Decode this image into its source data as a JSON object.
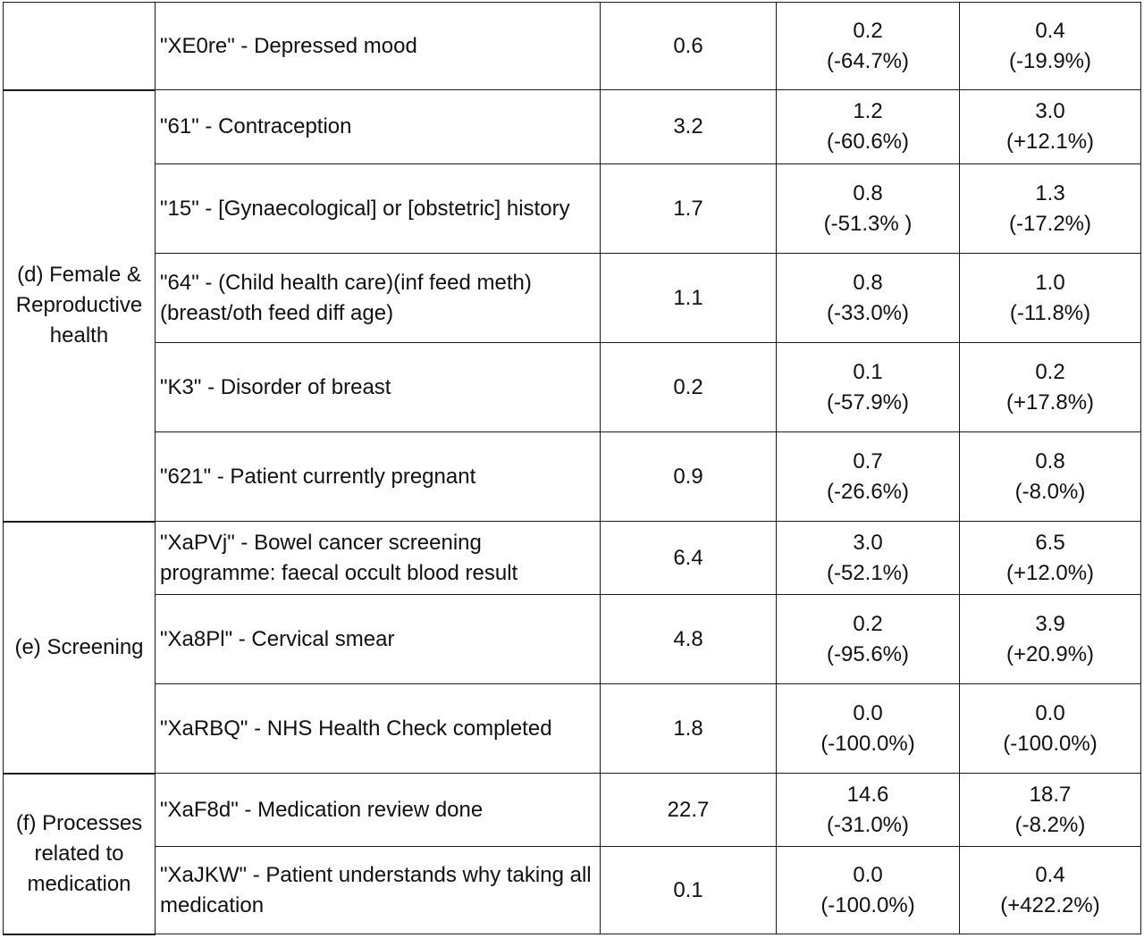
{
  "table": {
    "groups": [
      {
        "label": "",
        "rows": [
          {
            "term": "\"XE0re\" - Depressed mood",
            "base": "0.6",
            "col3": {
              "value": "0.2",
              "change": "(-64.7%)"
            },
            "col4": {
              "value": "0.4",
              "change": "(-19.9%)"
            }
          }
        ]
      },
      {
        "label": "(d) Female & Reproductive health",
        "rows": [
          {
            "term": "\"61\" - Contraception",
            "base": "3.2",
            "col3": {
              "value": "1.2",
              "change": "(-60.6%)"
            },
            "col4": {
              "value": "3.0",
              "change": "(+12.1%)"
            }
          },
          {
            "term": "\"15\" - [Gynaecological] or [obstetric] history",
            "base": "1.7",
            "col3": {
              "value": "0.8",
              "change": "(-51.3% )"
            },
            "col4": {
              "value": "1.3",
              "change": "(-17.2%)"
            }
          },
          {
            "term": "\"64\" - (Child health care)(inf feed meth)(breast/oth feed diff age)",
            "base": "1.1",
            "col3": {
              "value": "0.8",
              "change": "(-33.0%)"
            },
            "col4": {
              "value": "1.0",
              "change": "(-11.8%)"
            }
          },
          {
            "term": "\"K3\" - Disorder of breast",
            "base": "0.2",
            "col3": {
              "value": "0.1",
              "change": "(-57.9%)"
            },
            "col4": {
              "value": "0.2",
              "change": "(+17.8%)"
            }
          },
          {
            "term": "\"621\" - Patient currently pregnant",
            "base": "0.9",
            "col3": {
              "value": "0.7",
              "change": "(-26.6%)"
            },
            "col4": {
              "value": "0.8",
              "change": "(-8.0%)"
            }
          }
        ]
      },
      {
        "label": "(e) Screening",
        "rows": [
          {
            "term": "\"XaPVj\" - Bowel cancer screening programme: faecal occult blood result",
            "base": "6.4",
            "col3": {
              "value": "3.0",
              "change": "(-52.1%)"
            },
            "col4": {
              "value": "6.5",
              "change": "(+12.0%)"
            }
          },
          {
            "term": "\"Xa8Pl\" - Cervical smear",
            "base": "4.8",
            "col3": {
              "value": "0.2",
              "change": "(-95.6%)"
            },
            "col4": {
              "value": "3.9",
              "change": "(+20.9%)"
            }
          },
          {
            "term": "\"XaRBQ\" - NHS Health Check completed",
            "base": "1.8",
            "col3": {
              "value": "0.0",
              "change": "(-100.0%)"
            },
            "col4": {
              "value": "0.0",
              "change": "(-100.0%)"
            }
          }
        ]
      },
      {
        "label": "(f) Processes related to medication",
        "rows": [
          {
            "term": "\"XaF8d\" - Medication review done",
            "base": "22.7",
            "col3": {
              "value": "14.6",
              "change": "(-31.0%)"
            },
            "col4": {
              "value": "18.7",
              "change": "(-8.2%)"
            }
          },
          {
            "term": "\"XaJKW\" - Patient understands why taking all medication",
            "base": "0.1",
            "col3": {
              "value": "0.0",
              "change": "(-100.0%)"
            },
            "col4": {
              "value": "0.4",
              "change": "(+422.2%)"
            }
          }
        ]
      }
    ]
  }
}
